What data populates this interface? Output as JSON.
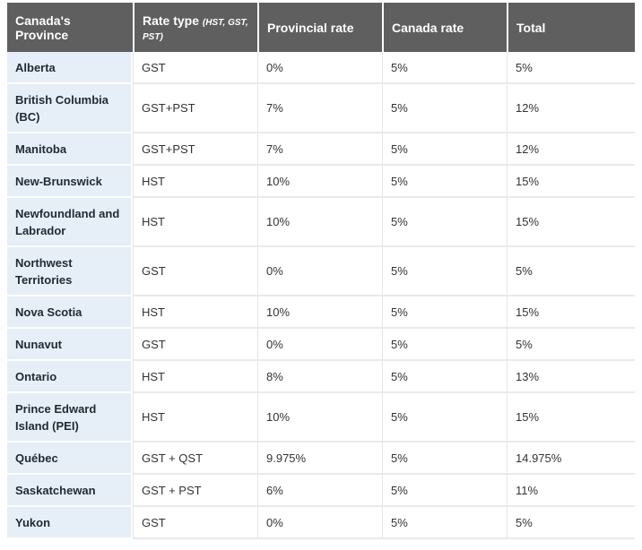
{
  "table": {
    "headers": {
      "province": "Canada's Province",
      "rate_type": "Rate type",
      "rate_type_note": "(HST, GST, PST)",
      "provincial_rate": "Provincial rate",
      "canada_rate": "Canada rate",
      "total": "Total"
    },
    "rows": [
      {
        "province": "Alberta",
        "type": "GST",
        "provincial": "0%",
        "canada": "5%",
        "total": "5%"
      },
      {
        "province": "British Columbia (BC)",
        "type": "GST+PST",
        "provincial": "7%",
        "canada": "5%",
        "total": "12%"
      },
      {
        "province": "Manitoba",
        "type": "GST+PST",
        "provincial": "7%",
        "canada": "5%",
        "total": "12%"
      },
      {
        "province": "New-Brunswick",
        "type": "HST",
        "provincial": "10%",
        "canada": "5%",
        "total": "15%"
      },
      {
        "province": "Newfoundland and Labrador",
        "type": "HST",
        "provincial": "10%",
        "canada": "5%",
        "total": "15%"
      },
      {
        "province": "Northwest Territories",
        "type": "GST",
        "provincial": "0%",
        "canada": "5%",
        "total": "5%"
      },
      {
        "province": "Nova Scotia",
        "type": "HST",
        "provincial": "10%",
        "canada": "5%",
        "total": "15%"
      },
      {
        "province": "Nunavut",
        "type": "GST",
        "provincial": "0%",
        "canada": "5%",
        "total": "5%"
      },
      {
        "province": "Ontario",
        "type": "HST",
        "provincial": "8%",
        "canada": "5%",
        "total": "13%"
      },
      {
        "province": "Prince Edward Island (PEI)",
        "type": "HST",
        "provincial": "10%",
        "canada": "5%",
        "total": "15%"
      },
      {
        "province": "Québec",
        "type": "GST + QST",
        "provincial": "9.975%",
        "canada": "5%",
        "total": "14.975%"
      },
      {
        "province": "Saskatchewan",
        "type": "GST + PST",
        "provincial": "6%",
        "canada": "5%",
        "total": "11%"
      },
      {
        "province": "Yukon",
        "type": "GST",
        "provincial": "0%",
        "canada": "5%",
        "total": "5%"
      }
    ]
  }
}
